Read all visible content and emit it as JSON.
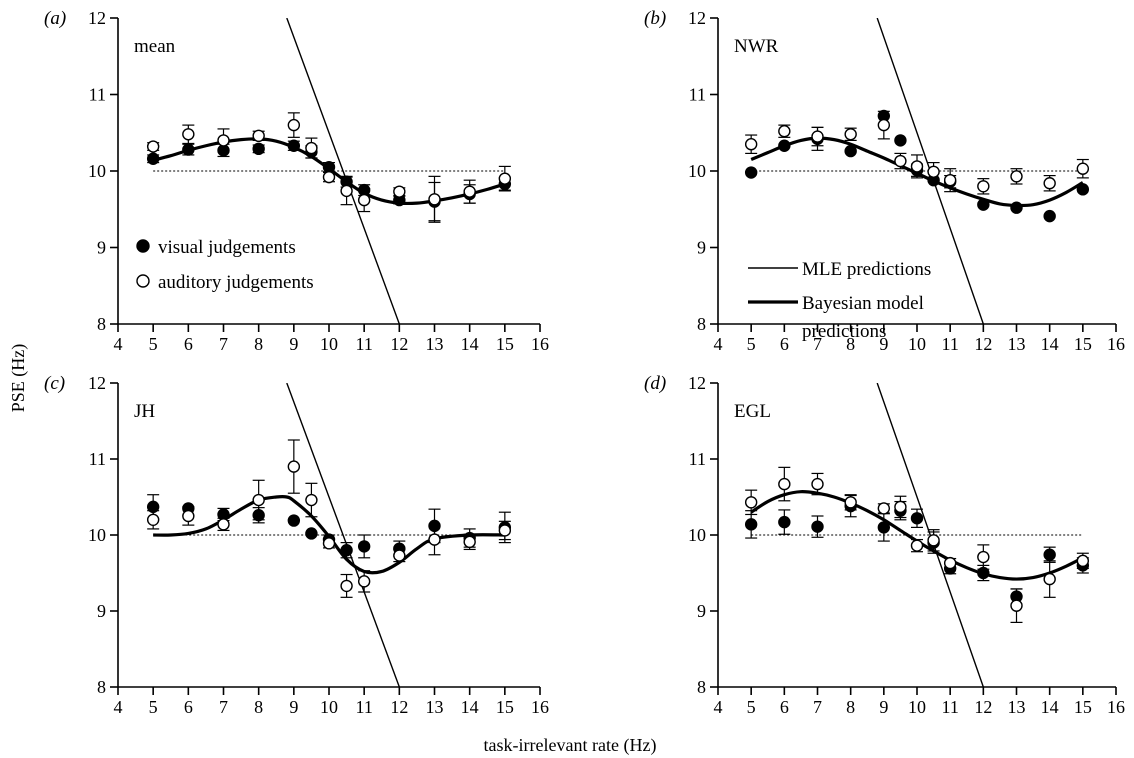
{
  "chart_data": [
    {
      "panel": "(a)",
      "name": "mean",
      "type": "scatter",
      "xlim": [
        4,
        16
      ],
      "ylim": [
        8,
        12
      ],
      "x_ticks": [
        4,
        5,
        6,
        7,
        8,
        9,
        10,
        11,
        12,
        13,
        14,
        15,
        16
      ],
      "y_ticks": [
        8,
        9,
        10,
        11,
        12
      ],
      "series": [
        {
          "name": "visual judgements",
          "marker": "filled-circle",
          "x": [
            5,
            6,
            7,
            8,
            9,
            9.5,
            10,
            10.5,
            11,
            12,
            13,
            14,
            15
          ],
          "y": [
            10.16,
            10.28,
            10.27,
            10.29,
            10.33,
            10.25,
            10.05,
            9.86,
            9.75,
            9.62,
            9.6,
            9.7,
            9.83
          ],
          "err": [
            0.05,
            0.07,
            0.08,
            0.05,
            0.06,
            0.08,
            0.06,
            0.07,
            0.07,
            0.05,
            0.25,
            0.12,
            0.08
          ]
        },
        {
          "name": "auditory judgements",
          "marker": "open-circle",
          "x": [
            5,
            6,
            7,
            8,
            9,
            9.5,
            10,
            10.5,
            11,
            12,
            13,
            14,
            15
          ],
          "y": [
            10.32,
            10.48,
            10.4,
            10.46,
            10.6,
            10.3,
            9.92,
            9.74,
            9.62,
            9.73,
            9.63,
            9.73,
            9.9
          ],
          "err": [
            0.05,
            0.12,
            0.15,
            0.06,
            0.16,
            0.13,
            0.06,
            0.18,
            0.15,
            0.05,
            0.3,
            0.15,
            0.16
          ]
        }
      ],
      "bayesian_curve": {
        "x": [
          5,
          5.5,
          6,
          6.5,
          7,
          7.5,
          8,
          8.5,
          9,
          9.5,
          10,
          10.5,
          11,
          11.5,
          12,
          12.5,
          13,
          13.5,
          14,
          14.5,
          15
        ],
        "y": [
          10.14,
          10.2,
          10.27,
          10.33,
          10.38,
          10.41,
          10.42,
          10.39,
          10.31,
          10.19,
          10.03,
          9.86,
          9.71,
          9.62,
          9.58,
          9.58,
          9.61,
          9.65,
          9.7,
          9.76,
          9.83
        ]
      },
      "mle_line": {
        "x": [
          8.8,
          12
        ],
        "y": [
          12,
          8
        ]
      },
      "reference_y": 10,
      "reference_x_range": [
        5,
        15
      ]
    },
    {
      "panel": "(b)",
      "name": "NWR",
      "type": "scatter",
      "xlim": [
        4,
        16
      ],
      "ylim": [
        8,
        12
      ],
      "x_ticks": [
        4,
        5,
        6,
        7,
        8,
        9,
        10,
        11,
        12,
        13,
        14,
        15,
        16
      ],
      "y_ticks": [
        8,
        9,
        10,
        11,
        12
      ],
      "series": [
        {
          "name": "visual judgements",
          "marker": "filled-circle",
          "x": [
            5,
            6,
            7,
            8,
            9,
            9.5,
            10,
            10.5,
            11,
            12,
            13,
            14,
            15
          ],
          "y": [
            9.98,
            10.33,
            10.42,
            10.26,
            10.72,
            10.4,
            10.01,
            9.88,
            9.86,
            9.56,
            9.52,
            9.41,
            9.76
          ],
          "err": [
            0,
            0,
            0.15,
            0,
            0,
            0,
            0.08,
            0,
            0.08,
            0,
            0,
            0,
            0
          ]
        },
        {
          "name": "auditory judgements",
          "marker": "open-circle",
          "x": [
            5,
            6,
            7,
            8,
            9,
            9.5,
            10,
            10.5,
            11,
            12,
            13,
            14,
            15
          ],
          "y": [
            10.35,
            10.52,
            10.45,
            10.48,
            10.6,
            10.13,
            10.06,
            9.99,
            9.88,
            9.8,
            9.93,
            9.84,
            10.03
          ],
          "err": [
            0.12,
            0.08,
            0.12,
            0.08,
            0.18,
            0.1,
            0.15,
            0.12,
            0.15,
            0.1,
            0.1,
            0.1,
            0.12
          ]
        }
      ],
      "bayesian_curve": {
        "x": [
          5,
          5.5,
          6,
          6.5,
          7,
          7.5,
          8,
          8.5,
          9,
          9.5,
          10,
          10.5,
          11,
          11.5,
          12,
          12.5,
          13,
          13.5,
          14,
          14.5,
          15
        ],
        "y": [
          10.15,
          10.24,
          10.33,
          10.4,
          10.43,
          10.41,
          10.35,
          10.26,
          10.17,
          10.07,
          9.97,
          9.87,
          9.78,
          9.7,
          9.63,
          9.57,
          9.55,
          9.56,
          9.62,
          9.72,
          9.85
        ]
      },
      "mle_line": {
        "x": [
          8.8,
          12
        ],
        "y": [
          12,
          8
        ]
      },
      "reference_y": 10,
      "reference_x_range": [
        5,
        15
      ],
      "legend": [
        {
          "label": "MLE predictions",
          "style": "thin-line"
        },
        {
          "label": "Bayesian model predictions",
          "lines": [
            "Bayesian model",
            "predictions"
          ],
          "style": "thick-line"
        }
      ]
    },
    {
      "panel": "(c)",
      "name": "JH",
      "type": "scatter",
      "xlim": [
        4,
        16
      ],
      "ylim": [
        8,
        12
      ],
      "x_ticks": [
        4,
        5,
        6,
        7,
        8,
        9,
        10,
        11,
        12,
        13,
        14,
        15,
        16
      ],
      "y_ticks": [
        8,
        9,
        10,
        11,
        12
      ],
      "series": [
        {
          "name": "visual judgements",
          "marker": "filled-circle",
          "x": [
            5,
            6,
            7,
            8,
            9,
            9.5,
            10,
            10.5,
            11,
            12,
            13,
            14,
            15
          ],
          "y": [
            10.37,
            10.35,
            10.27,
            10.26,
            10.19,
            10.02,
            9.94,
            9.8,
            9.85,
            9.82,
            10.12,
            9.96,
            10.1
          ],
          "err": [
            0.16,
            0,
            0.08,
            0.1,
            0,
            0,
            0.06,
            0.1,
            0.15,
            0.1,
            0.22,
            0.12,
            0.2
          ]
        },
        {
          "name": "auditory judgements",
          "marker": "open-circle",
          "x": [
            5,
            6,
            7,
            8,
            9,
            9.5,
            10,
            10.5,
            11,
            12,
            13,
            14,
            15
          ],
          "y": [
            10.2,
            10.25,
            10.14,
            10.46,
            10.9,
            10.46,
            9.89,
            9.33,
            9.39,
            9.73,
            9.94,
            9.91,
            10.06
          ],
          "err": [
            0.12,
            0.12,
            0.08,
            0.26,
            0.35,
            0.22,
            0.06,
            0.15,
            0.14,
            0.08,
            0.2,
            0.1,
            0.12
          ]
        }
      ],
      "bayesian_curve": {
        "x": [
          5,
          5.5,
          6,
          6.5,
          7,
          7.5,
          8,
          8.5,
          8.8,
          9,
          9.5,
          10,
          10.5,
          11,
          11.5,
          12,
          12.5,
          13,
          14,
          15
        ],
        "y": [
          10,
          10,
          10.02,
          10.08,
          10.2,
          10.34,
          10.46,
          10.5,
          10.5,
          10.45,
          10.25,
          9.98,
          9.68,
          9.52,
          9.52,
          9.64,
          9.82,
          9.95,
          10,
          10
        ]
      },
      "mle_line": {
        "x": [
          8.8,
          12
        ],
        "y": [
          12,
          8
        ]
      },
      "reference_y": 10,
      "reference_x_range": [
        5,
        15
      ]
    },
    {
      "panel": "(d)",
      "name": "EGL",
      "type": "scatter",
      "xlim": [
        4,
        16
      ],
      "ylim": [
        8,
        12
      ],
      "x_ticks": [
        4,
        5,
        6,
        7,
        8,
        9,
        10,
        11,
        12,
        13,
        14,
        15,
        16
      ],
      "y_ticks": [
        8,
        9,
        10,
        11,
        12
      ],
      "series": [
        {
          "name": "visual judgements",
          "marker": "filled-circle",
          "x": [
            5,
            6,
            7,
            8,
            9,
            9.5,
            10,
            10.5,
            11,
            12,
            13,
            14,
            15
          ],
          "y": [
            10.14,
            10.17,
            10.11,
            10.38,
            10.1,
            10.32,
            10.22,
            9.9,
            9.56,
            9.5,
            9.19,
            9.74,
            9.6
          ],
          "err": [
            0.18,
            0.16,
            0.14,
            0.14,
            0.18,
            0.12,
            0.12,
            0.14,
            0.07,
            0.1,
            0.1,
            0.1,
            0.1
          ]
        },
        {
          "name": "auditory judgements",
          "marker": "open-circle",
          "x": [
            5,
            6,
            7,
            8,
            9,
            9.5,
            10,
            10.5,
            11,
            12,
            13,
            14,
            15
          ],
          "y": [
            10.43,
            10.67,
            10.67,
            10.43,
            10.35,
            10.37,
            9.86,
            9.93,
            9.63,
            9.71,
            9.07,
            9.42,
            9.66
          ],
          "err": [
            0.16,
            0.22,
            0.14,
            0.1,
            0.06,
            0.14,
            0.08,
            0.14,
            0.06,
            0.16,
            0.22,
            0.24,
            0.1
          ]
        }
      ],
      "bayesian_curve": {
        "x": [
          5,
          5.5,
          6,
          6.5,
          7,
          7.5,
          8,
          8.5,
          9,
          9.5,
          10,
          10.5,
          11,
          11.5,
          12,
          12.5,
          13,
          13.5,
          14,
          14.5,
          15
        ],
        "y": [
          10.3,
          10.44,
          10.53,
          10.57,
          10.55,
          10.5,
          10.42,
          10.32,
          10.2,
          10.06,
          9.92,
          9.79,
          9.67,
          9.57,
          9.49,
          9.44,
          9.42,
          9.44,
          9.5,
          9.59,
          9.7
        ]
      },
      "mle_line": {
        "x": [
          8.8,
          12
        ],
        "y": [
          12,
          8
        ]
      },
      "reference_y": 10,
      "reference_x_range": [
        5,
        15
      ]
    }
  ],
  "figure": {
    "ylabel": "PSE (Hz)",
    "xlabel": "task-irrelevant rate (Hz)",
    "legend_points": [
      {
        "label": "visual judgements",
        "marker": "filled-circle"
      },
      {
        "label": "auditory judgements",
        "marker": "open-circle"
      }
    ],
    "colors": {
      "ink": "#000000",
      "background": "#ffffff"
    }
  }
}
